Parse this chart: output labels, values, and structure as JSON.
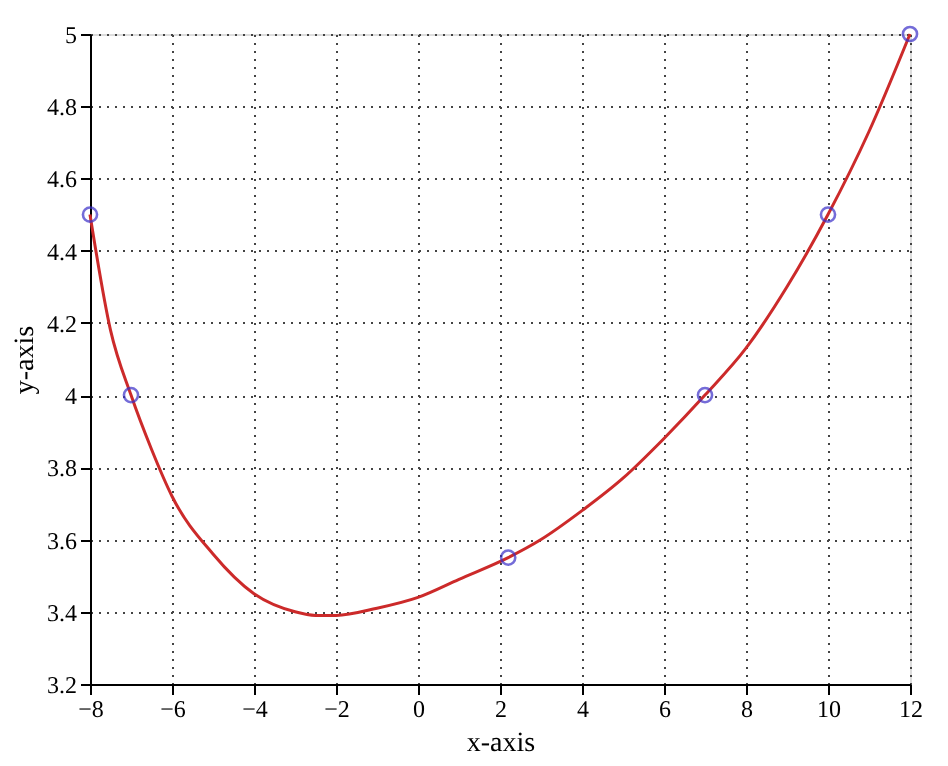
{
  "chart_data": {
    "type": "line",
    "xlabel": "x-axis",
    "ylabel": "y-axis",
    "xlim": [
      -8,
      12
    ],
    "xticks": [
      -8,
      -6,
      -4,
      -2,
      0,
      2,
      4,
      6,
      8,
      10,
      12
    ],
    "ylim": [
      3.2,
      5
    ],
    "yticks": [
      3.2,
      3.4,
      3.6,
      3.8,
      4,
      4.2,
      4.4,
      4.6,
      4.8,
      5
    ],
    "grid": true,
    "series": [
      {
        "color": "#cc2a2a",
        "marker": "none",
        "line_style": "solid",
        "x": [
          -8,
          -7.5,
          -7,
          -6.5,
          -6,
          -5,
          -4,
          -3,
          -2.5,
          -2,
          -1,
          0,
          1,
          2.2,
          3,
          4,
          5,
          6,
          7,
          8,
          9,
          10,
          11,
          12
        ],
        "values": [
          4.5,
          4.18,
          4.0,
          3.85,
          3.72,
          3.56,
          3.45,
          3.4,
          3.39,
          3.39,
          3.41,
          3.44,
          3.49,
          3.55,
          3.6,
          3.68,
          3.77,
          3.88,
          4.0,
          4.13,
          4.3,
          4.5,
          4.73,
          5.0
        ]
      },
      {
        "type": "scatter",
        "color": "#3a2fc8",
        "marker": "circle",
        "x": [
          -8,
          -7,
          2.2,
          7,
          10,
          12
        ],
        "values": [
          4.5,
          4.0,
          3.55,
          4.0,
          4.5,
          5.0
        ]
      }
    ]
  }
}
